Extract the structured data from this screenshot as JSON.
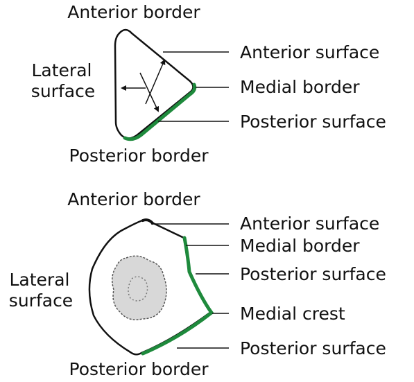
{
  "top_section": {
    "anterior_border": "Anterior border",
    "lateral_line1": "Lateral",
    "lateral_line2": "surface",
    "anterior_surface": "Anterior surface",
    "medial_border": "Medial border",
    "posterior_surface": "Posterior surface",
    "posterior_border": "Posterior border"
  },
  "bottom_section": {
    "anterior_border": "Anterior border",
    "lateral_line1": "Lateral",
    "lateral_line2": "surface",
    "anterior_surface": "Anterior surface",
    "medial_border": "Medial border",
    "posterior_surface_upper": "Posterior surface",
    "medial_crest": "Medial crest",
    "posterior_surface_lower": "Posterior surface",
    "posterior_border": "Posterior border"
  },
  "colors": {
    "outline": "#111111",
    "highlight": "#1e8a3c",
    "fill_marrow": "#d8d8d8"
  }
}
